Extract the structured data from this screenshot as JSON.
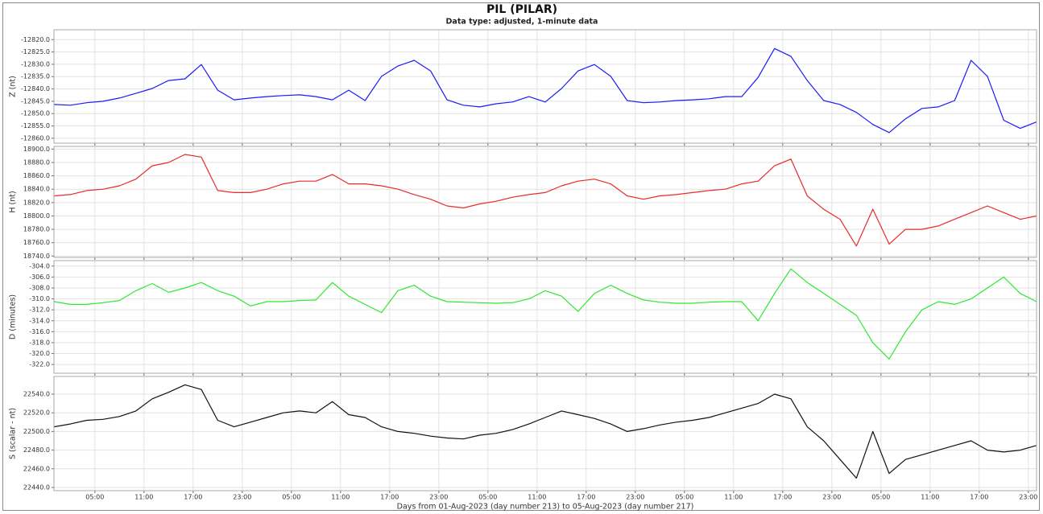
{
  "title": "PIL (PILAR)",
  "subtitle": "Data type: adjusted, 1-minute data",
  "chart_data": [
    {
      "type": "line",
      "y_label": "Z (nt)",
      "color": "#1a1aff",
      "grid": true,
      "x": [
        0,
        2,
        4,
        6,
        8,
        10,
        12,
        14,
        16,
        18,
        20,
        22,
        24,
        26,
        28,
        30,
        32,
        34,
        36,
        38,
        40,
        42,
        44,
        46,
        48,
        50,
        52,
        54,
        56,
        58,
        60,
        62,
        64,
        66,
        68,
        70,
        72,
        74,
        76,
        78,
        80,
        82,
        84,
        86,
        88,
        90,
        92,
        94,
        96,
        98,
        100,
        102,
        104,
        106,
        108,
        110,
        112,
        114,
        116,
        118,
        120
      ],
      "values": [
        -12846.3,
        -12846.6,
        -12845.6,
        -12845.0,
        -12843.7,
        -12841.8,
        -12839.8,
        -12836.6,
        -12835.9,
        -12830.1,
        -12840.5,
        -12844.4,
        -12843.7,
        -12843.1,
        -12842.7,
        -12842.4,
        -12843.1,
        -12844.4,
        -12840.5,
        -12844.7,
        -12834.9,
        -12830.7,
        -12828.4,
        -12832.7,
        -12844.4,
        -12846.6,
        -12847.3,
        -12846.0,
        -12845.3,
        -12843.1,
        -12845.3,
        -12839.8,
        -12832.7,
        -12830.1,
        -12834.9,
        -12844.7,
        -12845.6,
        -12845.3,
        -12844.7,
        -12844.4,
        -12844.0,
        -12843.1,
        -12843.1,
        -12835.3,
        -12823.6,
        -12826.8,
        -12836.6,
        -12844.7,
        -12846.3,
        -12849.5,
        -12854.4,
        -12857.7,
        -12852.1,
        -12847.9,
        -12847.3,
        -12844.7,
        -12828.4,
        -12834.9,
        -12852.7,
        -12856.0,
        -12853.4
      ],
      "xlim": [
        0,
        120
      ],
      "xticks": [
        5,
        11,
        17,
        23,
        29,
        35,
        41,
        47,
        53,
        59,
        65,
        71,
        77,
        83,
        89,
        95,
        101,
        107,
        113,
        119
      ],
      "ylim": [
        -12862,
        -12816
      ],
      "yticks": [
        {
          "value": -12820,
          "label": "-12820.0"
        },
        {
          "value": -12825,
          "label": "-12825.0"
        },
        {
          "value": -12830,
          "label": "-12830.0"
        },
        {
          "value": -12835,
          "label": "-12835.0"
        },
        {
          "value": -12840,
          "label": "-12840.0"
        },
        {
          "value": -12845,
          "label": "-12845.0"
        },
        {
          "value": -12850,
          "label": "-12850.0"
        },
        {
          "value": -12855,
          "label": "-12855.0"
        },
        {
          "value": -12860,
          "label": "-12860.0"
        }
      ]
    },
    {
      "type": "line",
      "y_label": "H (nt)",
      "color": "#e82a2a",
      "grid": true,
      "x": [
        0,
        2,
        4,
        6,
        8,
        10,
        12,
        14,
        16,
        18,
        20,
        22,
        24,
        26,
        28,
        30,
        32,
        34,
        36,
        38,
        40,
        42,
        44,
        46,
        48,
        50,
        52,
        54,
        56,
        58,
        60,
        62,
        64,
        66,
        68,
        70,
        72,
        74,
        76,
        78,
        80,
        82,
        84,
        86,
        88,
        90,
        92,
        94,
        96,
        98,
        100,
        102,
        104,
        106,
        108,
        110,
        112,
        114,
        116,
        118,
        120
      ],
      "values": [
        18830,
        18832,
        18838,
        18840,
        18845,
        18855,
        18875,
        18880,
        18892,
        18888,
        18838,
        18835,
        18835,
        18840,
        18848,
        18852,
        18852,
        18862,
        18848,
        18848,
        18845,
        18840,
        18832,
        18825,
        18815,
        18812,
        18818,
        18822,
        18828,
        18832,
        18835,
        18845,
        18852,
        18855,
        18848,
        18830,
        18825,
        18830,
        18832,
        18835,
        18838,
        18840,
        18848,
        18852,
        18875,
        18885,
        18830,
        18810,
        18795,
        18755,
        18810,
        18758,
        18780,
        18780,
        18785,
        18795,
        18805,
        18815,
        18805,
        18795,
        18800
      ],
      "xlim": [
        0,
        120
      ],
      "xticks": [
        5,
        11,
        17,
        23,
        29,
        35,
        41,
        47,
        53,
        59,
        65,
        71,
        77,
        83,
        89,
        95,
        101,
        107,
        113,
        119
      ],
      "ylim": [
        18738,
        18904
      ],
      "yticks": [
        {
          "value": 18740,
          "label": "18740.0"
        },
        {
          "value": 18760,
          "label": "18760.0"
        },
        {
          "value": 18780,
          "label": "18780.0"
        },
        {
          "value": 18800,
          "label": "18800.0"
        },
        {
          "value": 18820,
          "label": "18820.0"
        },
        {
          "value": 18840,
          "label": "18840.0"
        },
        {
          "value": 18860,
          "label": "18860.0"
        },
        {
          "value": 18880,
          "label": "18880.0"
        },
        {
          "value": 18900,
          "label": "18900.0"
        }
      ]
    },
    {
      "type": "line",
      "y_label": "D (minutes)",
      "color": "#2ee82e",
      "grid": true,
      "x": [
        0,
        2,
        4,
        6,
        8,
        10,
        12,
        14,
        16,
        18,
        20,
        22,
        24,
        26,
        28,
        30,
        32,
        34,
        36,
        38,
        40,
        42,
        44,
        46,
        48,
        50,
        52,
        54,
        56,
        58,
        60,
        62,
        64,
        66,
        68,
        70,
        72,
        74,
        76,
        78,
        80,
        82,
        84,
        86,
        88,
        90,
        92,
        94,
        96,
        98,
        100,
        102,
        104,
        106,
        108,
        110,
        112,
        114,
        116,
        118,
        120
      ],
      "values": [
        -310.5,
        -311,
        -311,
        -310.7,
        -310.3,
        -308.5,
        -307.2,
        -308.8,
        -308,
        -307,
        -308.5,
        -309.5,
        -311.3,
        -310.5,
        -310.5,
        -310.3,
        -310.2,
        -307,
        -309.5,
        -311,
        -312.5,
        -308.5,
        -307.5,
        -309.5,
        -310.5,
        -310.6,
        -310.7,
        -310.8,
        -310.7,
        -310,
        -308.5,
        -309.5,
        -312.3,
        -309,
        -307.5,
        -309,
        -310.2,
        -310.6,
        -310.8,
        -310.8,
        -310.6,
        -310.5,
        -310.5,
        -314,
        -309,
        -304.5,
        -307,
        -309,
        -311,
        -313,
        -318,
        -321,
        -316,
        -312,
        -310.5,
        -311,
        -310,
        -308,
        -306,
        -309,
        -310.5
      ],
      "xlim": [
        0,
        120
      ],
      "xticks": [
        5,
        11,
        17,
        23,
        29,
        35,
        41,
        47,
        53,
        59,
        65,
        71,
        77,
        83,
        89,
        95,
        101,
        107,
        113,
        119
      ],
      "ylim": [
        -323.6,
        -303
      ],
      "yticks": [
        {
          "value": -304,
          "label": "-304.0"
        },
        {
          "value": -306,
          "label": "-306.0"
        },
        {
          "value": -308,
          "label": "-308.0"
        },
        {
          "value": -310,
          "label": "-310.0"
        },
        {
          "value": -312,
          "label": "-312.0"
        },
        {
          "value": -314,
          "label": "-314.0"
        },
        {
          "value": -316,
          "label": "-316.0"
        },
        {
          "value": -318,
          "label": "-318.0"
        },
        {
          "value": -320,
          "label": "-320.0"
        },
        {
          "value": -322,
          "label": "-322.0"
        }
      ]
    },
    {
      "type": "line",
      "y_label": "S (scalar - nt)",
      "color": "#111111",
      "grid": true,
      "x_label": "Days from 01-Aug-2023 (day number 213) to 05-Aug-2023 (day number 217)",
      "x": [
        0,
        2,
        4,
        6,
        8,
        10,
        12,
        14,
        16,
        18,
        20,
        22,
        24,
        26,
        28,
        30,
        32,
        34,
        36,
        38,
        40,
        42,
        44,
        46,
        48,
        50,
        52,
        54,
        56,
        58,
        60,
        62,
        64,
        66,
        68,
        70,
        72,
        74,
        76,
        78,
        80,
        82,
        84,
        86,
        88,
        90,
        92,
        94,
        96,
        98,
        100,
        102,
        104,
        106,
        108,
        110,
        112,
        114,
        116,
        118,
        120
      ],
      "values": [
        22505,
        22508,
        22512,
        22513,
        22516,
        22522,
        22535,
        22542,
        22550,
        22545,
        22512,
        22505,
        22510,
        22515,
        22520,
        22522,
        22520,
        22532,
        22518,
        22515,
        22505,
        22500,
        22498,
        22495,
        22493,
        22492,
        22496,
        22498,
        22502,
        22508,
        22515,
        22522,
        22518,
        22514,
        22508,
        22500,
        22503,
        22507,
        22510,
        22512,
        22515,
        22520,
        22525,
        22530,
        22540,
        22535,
        22505,
        22490,
        22470,
        22450,
        22500,
        22455,
        22470,
        22475,
        22480,
        22485,
        22490,
        22480,
        22478,
        22480,
        22485
      ],
      "xlim": [
        0,
        120
      ],
      "xticks": [
        {
          "value": 5,
          "label": "05:00"
        },
        {
          "value": 11,
          "label": "11:00"
        },
        {
          "value": 17,
          "label": "17:00"
        },
        {
          "value": 23,
          "label": "23:00"
        },
        {
          "value": 29,
          "label": "05:00"
        },
        {
          "value": 35,
          "label": "11:00"
        },
        {
          "value": 41,
          "label": "17:00"
        },
        {
          "value": 47,
          "label": "23:00"
        },
        {
          "value": 53,
          "label": "05:00"
        },
        {
          "value": 59,
          "label": "11:00"
        },
        {
          "value": 65,
          "label": "17:00"
        },
        {
          "value": 71,
          "label": "23:00"
        },
        {
          "value": 77,
          "label": "05:00"
        },
        {
          "value": 83,
          "label": "11:00"
        },
        {
          "value": 89,
          "label": "17:00"
        },
        {
          "value": 95,
          "label": "23:00"
        },
        {
          "value": 101,
          "label": "05:00"
        },
        {
          "value": 107,
          "label": "11:00"
        },
        {
          "value": 113,
          "label": "17:00"
        },
        {
          "value": 119,
          "label": "23:00"
        }
      ],
      "ylim": [
        22436.5,
        22559
      ],
      "yticks": [
        {
          "value": 22440,
          "label": "22440.0"
        },
        {
          "value": 22460,
          "label": "22460.0"
        },
        {
          "value": 22480,
          "label": "22480.0"
        },
        {
          "value": 22500,
          "label": "22500.0"
        },
        {
          "value": 22520,
          "label": "22520.0"
        },
        {
          "value": 22540,
          "label": "22540.0"
        }
      ]
    }
  ]
}
